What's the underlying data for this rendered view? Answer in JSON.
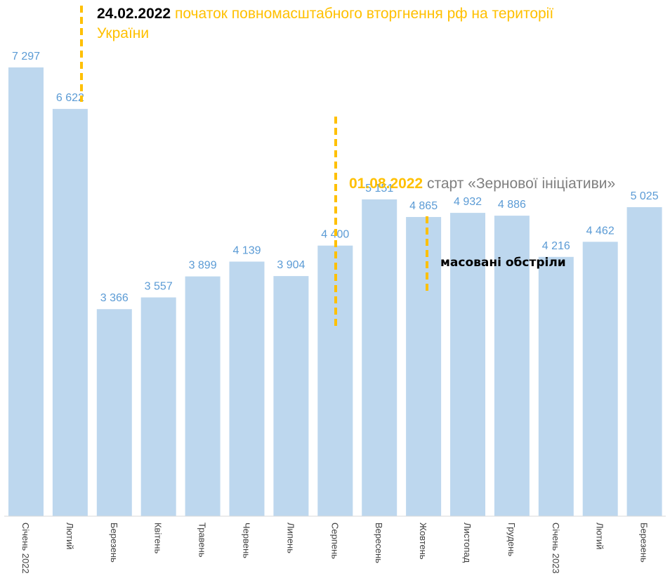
{
  "chart_data": {
    "type": "bar",
    "categories": [
      "Січень 2022",
      "Лютий",
      "Березень",
      "Квітень",
      "Травень",
      "Червень",
      "Липень",
      "Серпень",
      "Вересень",
      "Жовтень",
      "Листопад",
      "Грудень",
      "Січень 2023",
      "Лютий",
      "Березень"
    ],
    "values": [
      7297,
      6622,
      3366,
      3557,
      3899,
      4139,
      3904,
      4400,
      5151,
      4865,
      4932,
      4886,
      4216,
      4462,
      5025
    ],
    "value_labels": [
      "7 297",
      "6 622",
      "3 366",
      "3 557",
      "3 899",
      "4 139",
      "3 904",
      "4 400",
      "5 151",
      "4 865",
      "4 932",
      "4 886",
      "4 216",
      "4 462",
      "5 025"
    ],
    "title": "",
    "xlabel": "",
    "ylabel": "",
    "ylim": [
      0,
      7500
    ],
    "grid": false,
    "colors": {
      "bar": "#BDD7EE",
      "value_label": "#5B9BD5",
      "annotation_line": "#FFC000",
      "axis": "#D9D9D9",
      "tick_label": "#404040"
    }
  },
  "annotations": {
    "invasion": {
      "date": "24.02.2022",
      "text": " початок повномасштабного вторгнення рф на території України"
    },
    "grain": {
      "date": "01.08.2022",
      "text": " старт «Зернової ініціативи»"
    },
    "shelling": {
      "text": "масовані обстріли"
    }
  }
}
